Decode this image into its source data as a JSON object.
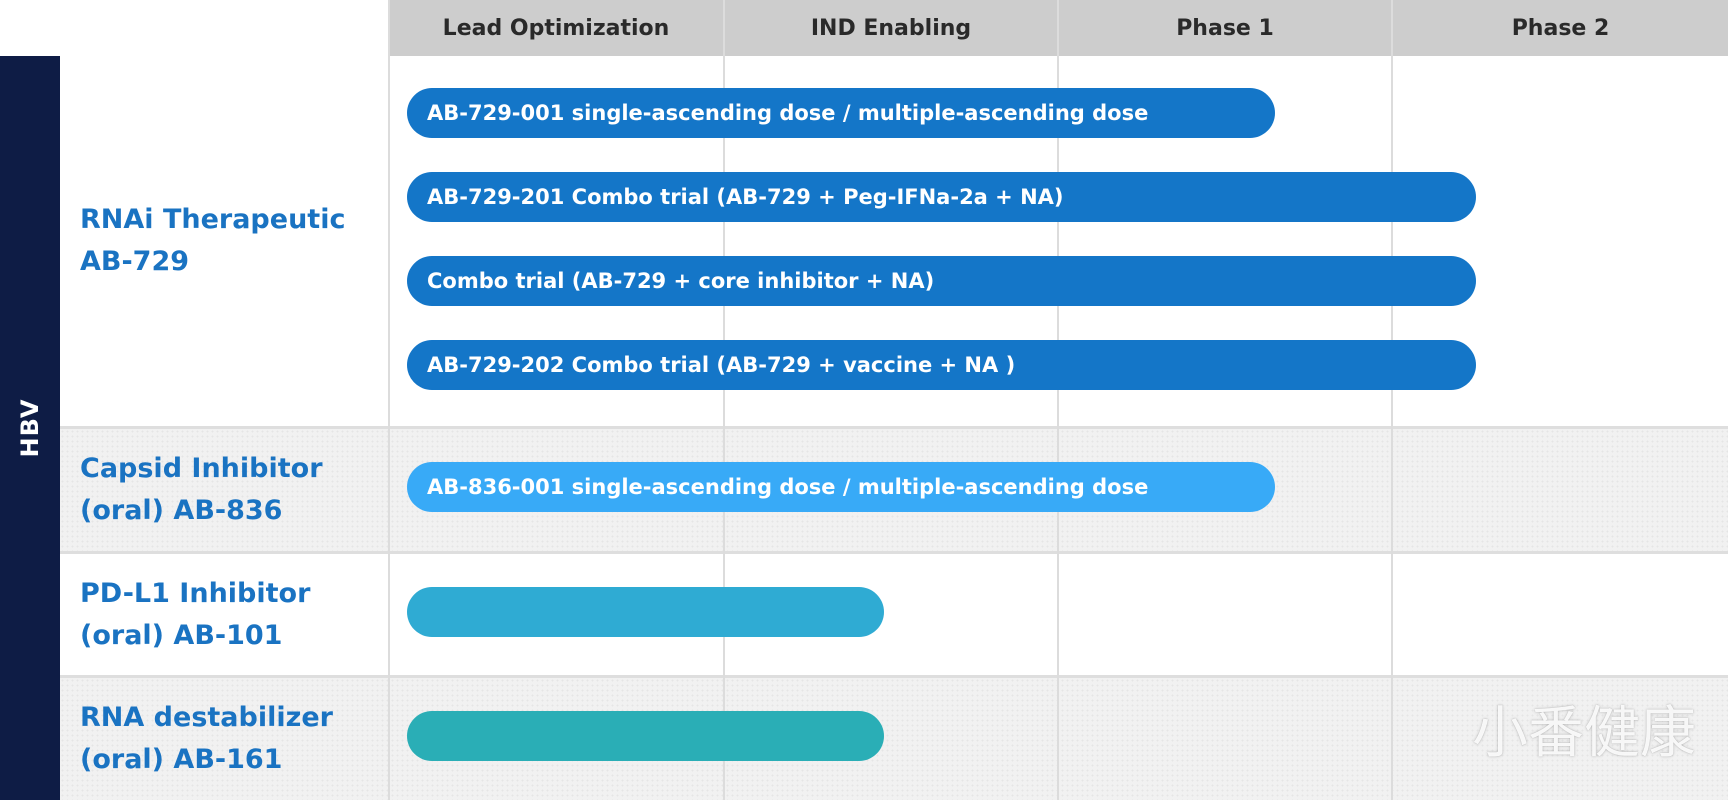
{
  "phases": [
    "Lead Optimization",
    "IND Enabling",
    "Phase 1",
    "Phase 2"
  ],
  "side_label": "HBV",
  "colors": {
    "side_band": "#0e1c45",
    "header_bg": "#cdcdcd",
    "program_text": "#1a73c2",
    "bar_rnai": "#1476c8",
    "bar_capsid": "#38aaf7",
    "bar_pdl1": "#2fabd3",
    "bar_rna_destabilizer": "#2aaeb6"
  },
  "programs": [
    {
      "name_line1": "RNAi Therapeutic",
      "name_line2": "AB-729",
      "trials": [
        {
          "label": "AB-729-001 single-ascending dose / multiple-ascending dose",
          "progress_phase_fraction": 2.65,
          "color": "#1476c8"
        },
        {
          "label": "AB-729-201 Combo trial (AB-729 + Peg-IFNa-2a + NA)",
          "progress_phase_fraction": 3.25,
          "color": "#1476c8"
        },
        {
          "label": "Combo trial (AB-729 + core inhibitor + NA)",
          "progress_phase_fraction": 3.25,
          "color": "#1476c8"
        },
        {
          "label": "AB-729-202 Combo trial (AB-729 + vaccine + NA )",
          "progress_phase_fraction": 3.25,
          "color": "#1476c8"
        }
      ]
    },
    {
      "name_line1": "Capsid Inhibitor",
      "name_line2": "(oral) AB-836",
      "trials": [
        {
          "label": "AB-836-001 single-ascending dose / multiple-ascending dose",
          "progress_phase_fraction": 2.65,
          "color": "#38aaf7"
        }
      ]
    },
    {
      "name_line1": "PD-L1 Inhibitor",
      "name_line2": "(oral) AB-101",
      "trials": [
        {
          "label": "",
          "progress_phase_fraction": 1.48,
          "color": "#2fabd3"
        }
      ]
    },
    {
      "name_line1": "RNA destabilizer",
      "name_line2": "(oral) AB-161",
      "trials": [
        {
          "label": "",
          "progress_phase_fraction": 1.48,
          "color": "#2aaeb6"
        }
      ]
    }
  ],
  "watermark": "小番健康"
}
